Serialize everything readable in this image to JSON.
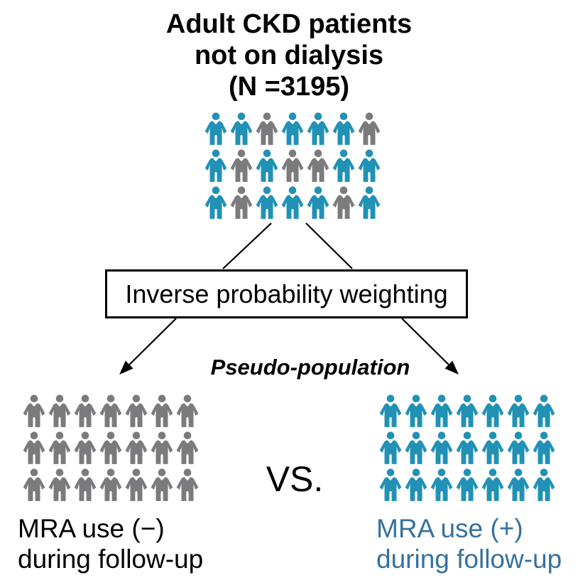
{
  "colors": {
    "teal": "#2191b5",
    "gray": "#7b7b7d",
    "blue_text": "#36719f",
    "black": "#000000"
  },
  "title": {
    "line1": "Adult CKD patients",
    "line2": "not on dialysis",
    "line3": "(N =3195)"
  },
  "top_crowd": {
    "rows": 3,
    "cols": 7,
    "pattern": [
      [
        "teal",
        "teal",
        "gray",
        "teal",
        "teal",
        "teal",
        "gray"
      ],
      [
        "teal",
        "gray",
        "teal",
        "gray",
        "gray",
        "teal",
        "teal"
      ],
      [
        "teal",
        "gray",
        "teal",
        "teal",
        "teal",
        "gray",
        "teal"
      ]
    ]
  },
  "ipw_box": {
    "label": "Inverse probability weighting"
  },
  "pseudo_population": {
    "label": "Pseudo-population"
  },
  "vs": {
    "label": "VS."
  },
  "left_group": {
    "color": "gray",
    "rows": 3,
    "cols": 7,
    "label_line1": "MRA use (−)",
    "label_line2": "during follow-up"
  },
  "right_group": {
    "color": "teal",
    "rows": 3,
    "cols": 7,
    "label_line1": "MRA use (+)",
    "label_line2": "during follow-up"
  }
}
